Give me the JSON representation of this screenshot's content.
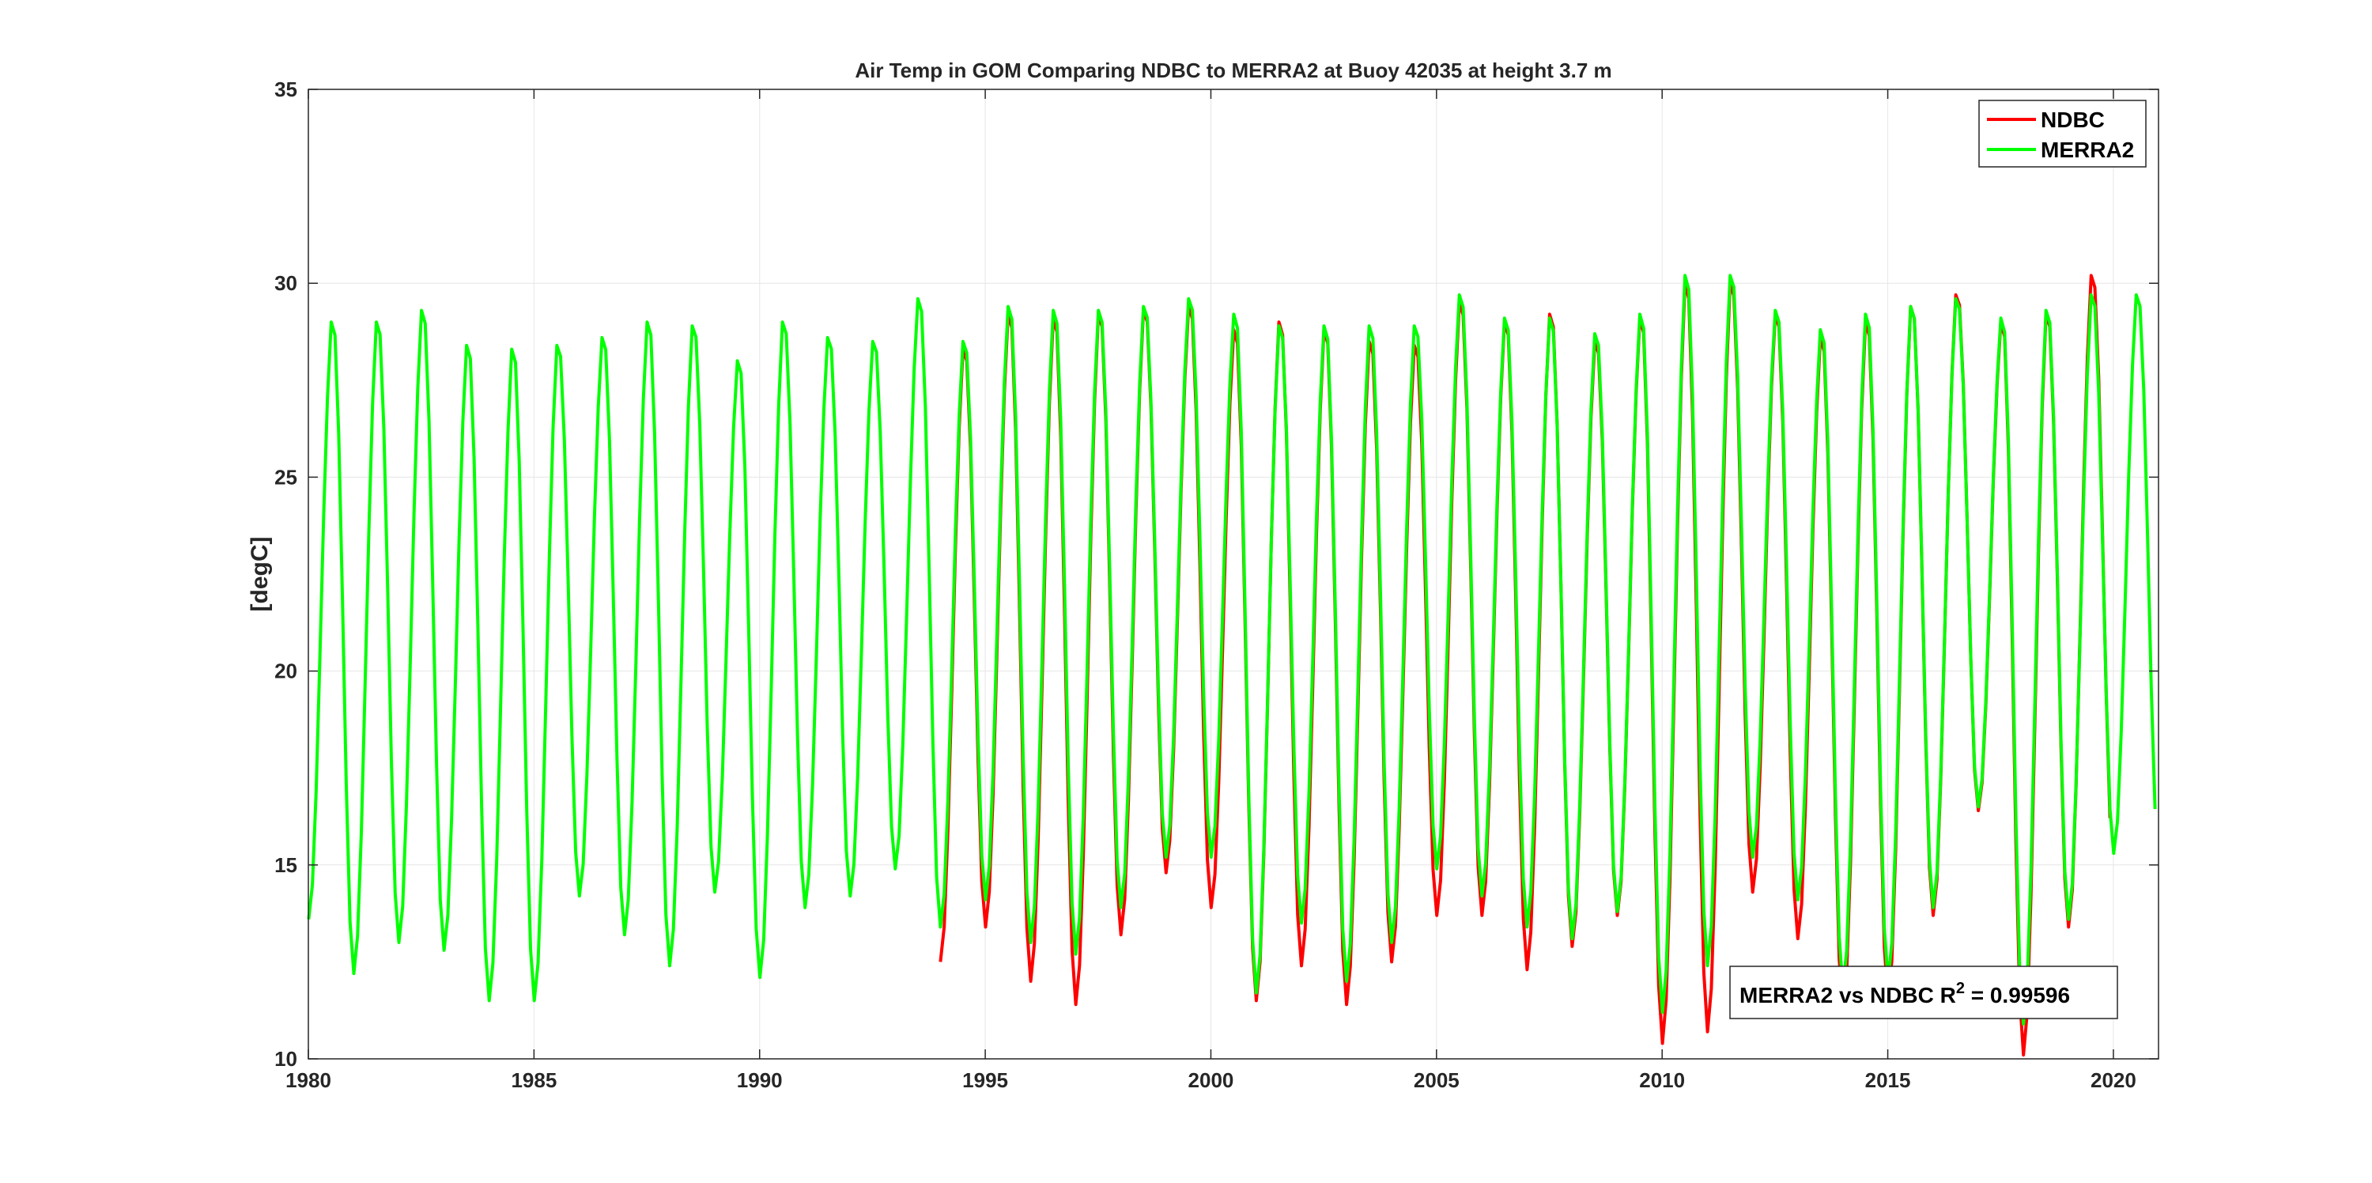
{
  "chart_data": {
    "type": "line",
    "title": "Air Temp in GOM Comparing NDBC to MERRA2 at Buoy  42035  at height  3.7 m",
    "xlabel": "",
    "ylabel": "[degC]",
    "xlim": [
      1980,
      2021
    ],
    "ylim": [
      10,
      35
    ],
    "xticks": [
      1980,
      1985,
      1990,
      1995,
      2000,
      2005,
      2010,
      2015,
      2020
    ],
    "yticks": [
      10,
      15,
      20,
      25,
      30,
      35
    ],
    "grid": true,
    "legend_position": "top-right",
    "annotation": {
      "text": "MERRA2 vs NDBC R",
      "sup": "2",
      "tail": " = 0.99596"
    },
    "year_extremes": {
      "years": [
        1980,
        1981,
        1982,
        1983,
        1984,
        1985,
        1986,
        1987,
        1988,
        1989,
        1990,
        1991,
        1992,
        1993,
        1994,
        1995,
        1996,
        1997,
        1998,
        1999,
        2000,
        2001,
        2002,
        2003,
        2004,
        2005,
        2006,
        2007,
        2008,
        2009,
        2010,
        2011,
        2012,
        2013,
        2014,
        2015,
        2016,
        2017,
        2018,
        2019,
        2020
      ],
      "merra2_winter_min": [
        13.6,
        12.2,
        13.0,
        12.8,
        11.5,
        11.5,
        14.2,
        13.2,
        12.4,
        14.3,
        12.1,
        13.9,
        14.2,
        14.9,
        13.4,
        14.1,
        13.0,
        12.7,
        13.9,
        15.2,
        15.2,
        11.7,
        13.5,
        12.0,
        13.0,
        14.9,
        14.2,
        13.4,
        13.1,
        13.8,
        11.2,
        12.4,
        15.2,
        14.1,
        11.8,
        12.0,
        13.9,
        16.5,
        10.9,
        13.6,
        15.3
      ],
      "merra2_summer_max": [
        29.0,
        29.0,
        29.3,
        28.4,
        28.3,
        28.4,
        28.6,
        29.0,
        28.9,
        28.0,
        29.0,
        28.6,
        28.5,
        29.6,
        28.5,
        29.4,
        29.3,
        29.3,
        29.4,
        29.6,
        29.2,
        28.9,
        28.9,
        28.9,
        28.9,
        29.7,
        29.1,
        29.1,
        28.7,
        29.2,
        30.2,
        30.2,
        29.3,
        28.8,
        29.2,
        29.4,
        29.6,
        29.1,
        29.3,
        29.7,
        29.7
      ],
      "ndbc_winter_min": [
        null,
        null,
        null,
        null,
        null,
        null,
        null,
        null,
        null,
        null,
        null,
        null,
        null,
        null,
        12.5,
        13.4,
        12.0,
        11.4,
        13.2,
        14.8,
        13.9,
        11.5,
        12.4,
        11.4,
        12.5,
        13.7,
        13.7,
        12.3,
        12.9,
        13.7,
        10.4,
        10.7,
        14.3,
        13.1,
        11.2,
        11.5,
        13.7,
        16.4,
        10.1,
        13.4,
        15.0
      ],
      "ndbc_summer_max": [
        null,
        null,
        null,
        null,
        null,
        null,
        null,
        null,
        null,
        null,
        null,
        null,
        null,
        29.3,
        28.3,
        29.2,
        29.1,
        29.2,
        29.3,
        29.4,
        28.8,
        29.0,
        28.8,
        28.5,
        28.4,
        29.5,
        29.0,
        29.2,
        28.5,
        29.1,
        30.0,
        30.0,
        29.2,
        28.6,
        29.0,
        29.4,
        29.7,
        29.0,
        29.2,
        30.2,
        null
      ]
    },
    "series": [
      {
        "name": "NDBC",
        "color": "#ff0000"
      },
      {
        "name": "MERRA2",
        "color": "#00ff00"
      }
    ]
  }
}
